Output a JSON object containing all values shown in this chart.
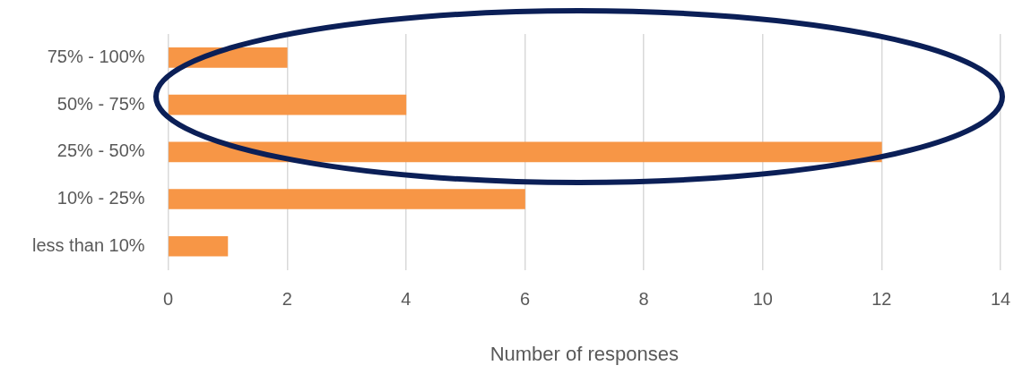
{
  "chart_data": {
    "type": "bar",
    "orientation": "horizontal",
    "xlabel": "Number of responses",
    "categories": [
      "75% - 100%",
      "50% - 75%",
      "25% - 50%",
      "10% - 25%",
      "less than 10%"
    ],
    "values": [
      2,
      4,
      12,
      6,
      1
    ],
    "color": "#f79646",
    "xlim": [
      0,
      14
    ],
    "xticks": [
      0,
      2,
      4,
      6,
      8,
      10,
      12,
      14
    ],
    "grid": "x",
    "legend": false
  }
}
